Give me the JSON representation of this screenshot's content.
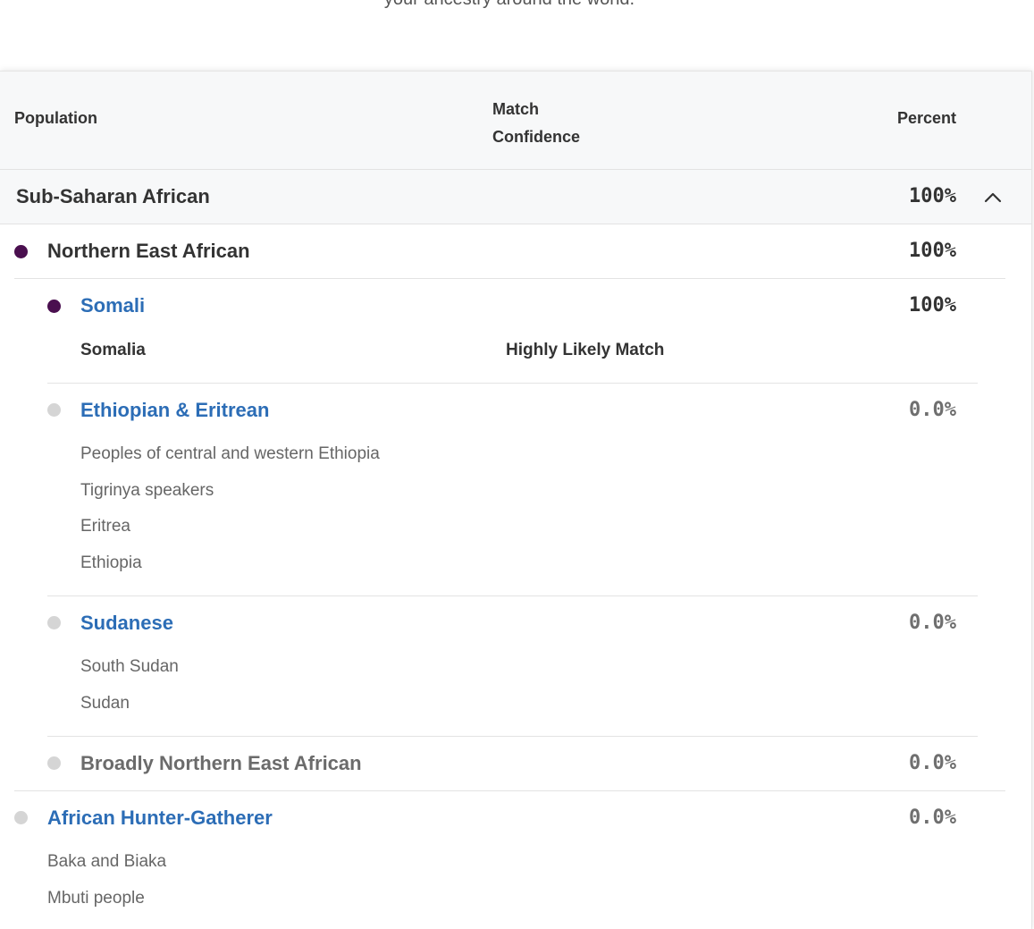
{
  "intro": {
    "text": "your ancestry around the world."
  },
  "table": {
    "headers": {
      "population": "Population",
      "confidence_line1": "Match",
      "confidence_line2": "Confidence",
      "percent": "Percent"
    }
  },
  "region": {
    "name": "Sub-Saharan African",
    "percent": "100%"
  },
  "group_northern_east": {
    "name": "Northern East African",
    "percent": "100%",
    "dot_color": "#4a0f4f"
  },
  "somali": {
    "name": "Somali",
    "percent": "100%",
    "dot_color": "#4a0f4f",
    "sub_country": "Somalia",
    "sub_confidence": "Highly Likely Match"
  },
  "ethiopian": {
    "name": "Ethiopian & Eritrean",
    "percent": "0.0%",
    "dot_color": "#d5d5d5",
    "subs": [
      "Peoples of central and western Ethiopia",
      "Tigrinya speakers",
      "Eritrea",
      "Ethiopia"
    ]
  },
  "sudanese": {
    "name": "Sudanese",
    "percent": "0.0%",
    "dot_color": "#d5d5d5",
    "subs": [
      "South Sudan",
      "Sudan"
    ]
  },
  "broadly_ne": {
    "name": "Broadly Northern East African",
    "percent": "0.0%",
    "dot_color": "#d5d5d5"
  },
  "hunter_gatherer": {
    "name": "African Hunter-Gatherer",
    "percent": "0.0%",
    "dot_color": "#d5d5d5",
    "subs": [
      "Baka and Biaka",
      "Mbuti people"
    ]
  },
  "icons": {
    "collapse": "chevron-up-icon",
    "swatch": "color-dot-icon"
  }
}
